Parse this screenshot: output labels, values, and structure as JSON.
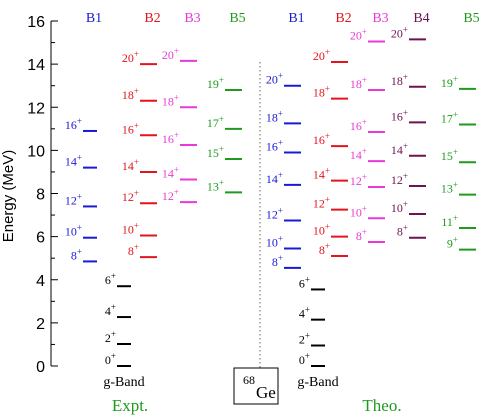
{
  "chart_data": {
    "type": "level-scheme",
    "ylabel": "Energy (MeV)",
    "ylim": [
      0,
      16
    ],
    "yticks": [
      0,
      2,
      4,
      6,
      8,
      10,
      12,
      14,
      16
    ],
    "nucleus": {
      "mass": "68",
      "symbol": "Ge"
    },
    "colors": {
      "B1": "#1a1ad6",
      "B2": "#e3141c",
      "B3": "#e83ad8",
      "B4": "#6b1452",
      "B5": "#1f9a1f",
      "g-Band": "#000000"
    },
    "panels": [
      {
        "name": "Expt.",
        "bands": [
          {
            "name": "g-Band",
            "levels": [
              {
                "spin": "0",
                "parity": "+",
                "energy": 0.0
              },
              {
                "spin": "2",
                "parity": "+",
                "energy": 1.02
              },
              {
                "spin": "4",
                "parity": "+",
                "energy": 2.27
              },
              {
                "spin": "6",
                "parity": "+",
                "energy": 3.7
              }
            ]
          },
          {
            "name": "B1",
            "levels": [
              {
                "spin": "8",
                "parity": "+",
                "energy": 4.85
              },
              {
                "spin": "10",
                "parity": "+",
                "energy": 5.95
              },
              {
                "spin": "12",
                "parity": "+",
                "energy": 7.4
              },
              {
                "spin": "14",
                "parity": "+",
                "energy": 9.2
              },
              {
                "spin": "16",
                "parity": "+",
                "energy": 10.9
              }
            ]
          },
          {
            "name": "B2",
            "levels": [
              {
                "spin": "8",
                "parity": "+",
                "energy": 5.05
              },
              {
                "spin": "10",
                "parity": "+",
                "energy": 6.05
              },
              {
                "spin": "12",
                "parity": "+",
                "energy": 7.55
              },
              {
                "spin": "14",
                "parity": "+",
                "energy": 9.0
              },
              {
                "spin": "16",
                "parity": "+",
                "energy": 10.7
              },
              {
                "spin": "18",
                "parity": "+",
                "energy": 12.3
              },
              {
                "spin": "20",
                "parity": "+",
                "energy": 14.0
              }
            ]
          },
          {
            "name": "B3",
            "levels": [
              {
                "spin": "12",
                "parity": "+",
                "energy": 7.6
              },
              {
                "spin": "14",
                "parity": "+",
                "energy": 8.65
              },
              {
                "spin": "16",
                "parity": "+",
                "energy": 10.25
              },
              {
                "spin": "18",
                "parity": "+",
                "energy": 12.0
              },
              {
                "spin": "20",
                "parity": "+",
                "energy": 14.15
              }
            ]
          },
          {
            "name": "B5",
            "levels": [
              {
                "spin": "13",
                "parity": "+",
                "energy": 8.05
              },
              {
                "spin": "15",
                "parity": "+",
                "energy": 9.6
              },
              {
                "spin": "17",
                "parity": "+",
                "energy": 11.0
              },
              {
                "spin": "19",
                "parity": "+",
                "energy": 12.8
              }
            ]
          }
        ]
      },
      {
        "name": "Theo.",
        "bands": [
          {
            "name": "g-Band",
            "levels": [
              {
                "spin": "0",
                "parity": "+",
                "energy": 0.0
              },
              {
                "spin": "2",
                "parity": "+",
                "energy": 0.95
              },
              {
                "spin": "4",
                "parity": "+",
                "energy": 2.15
              },
              {
                "spin": "6",
                "parity": "+",
                "energy": 3.55
              }
            ]
          },
          {
            "name": "B1",
            "levels": [
              {
                "spin": "8",
                "parity": "+",
                "energy": 4.55
              },
              {
                "spin": "10",
                "parity": "+",
                "energy": 5.45
              },
              {
                "spin": "12",
                "parity": "+",
                "energy": 6.75
              },
              {
                "spin": "14",
                "parity": "+",
                "energy": 8.4
              },
              {
                "spin": "16",
                "parity": "+",
                "energy": 9.9
              },
              {
                "spin": "18",
                "parity": "+",
                "energy": 11.25
              },
              {
                "spin": "20",
                "parity": "+",
                "energy": 13.0
              }
            ]
          },
          {
            "name": "B2",
            "levels": [
              {
                "spin": "8",
                "parity": "+",
                "energy": 5.1
              },
              {
                "spin": "10",
                "parity": "+",
                "energy": 6.0
              },
              {
                "spin": "12",
                "parity": "+",
                "energy": 7.25
              },
              {
                "spin": "14",
                "parity": "+",
                "energy": 8.6
              },
              {
                "spin": "16",
                "parity": "+",
                "energy": 10.2
              },
              {
                "spin": "18",
                "parity": "+",
                "energy": 12.4
              },
              {
                "spin": "20",
                "parity": "+",
                "energy": 14.1
              }
            ]
          },
          {
            "name": "B3",
            "levels": [
              {
                "spin": "8",
                "parity": "+",
                "energy": 5.75
              },
              {
                "spin": "10",
                "parity": "+",
                "energy": 6.85
              },
              {
                "spin": "12",
                "parity": "+",
                "energy": 8.3
              },
              {
                "spin": "14",
                "parity": "+",
                "energy": 9.5
              },
              {
                "spin": "16",
                "parity": "+",
                "energy": 10.85
              },
              {
                "spin": "18",
                "parity": "+",
                "energy": 12.8
              },
              {
                "spin": "20",
                "parity": "+",
                "energy": 15.05
              }
            ]
          },
          {
            "name": "B4",
            "levels": [
              {
                "spin": "8",
                "parity": "+",
                "energy": 5.95
              },
              {
                "spin": "10",
                "parity": "+",
                "energy": 7.05
              },
              {
                "spin": "12",
                "parity": "+",
                "energy": 8.35
              },
              {
                "spin": "14",
                "parity": "+",
                "energy": 9.75
              },
              {
                "spin": "16",
                "parity": "+",
                "energy": 11.3
              },
              {
                "spin": "18",
                "parity": "+",
                "energy": 12.95
              },
              {
                "spin": "20",
                "parity": "+",
                "energy": 15.15
              }
            ]
          },
          {
            "name": "B5",
            "levels": [
              {
                "spin": "9",
                "parity": "+",
                "energy": 5.4
              },
              {
                "spin": "11",
                "parity": "+",
                "energy": 6.4
              },
              {
                "spin": "13",
                "parity": "+",
                "energy": 7.95
              },
              {
                "spin": "15",
                "parity": "+",
                "energy": 9.45
              },
              {
                "spin": "17",
                "parity": "+",
                "energy": 11.2
              },
              {
                "spin": "19",
                "parity": "+",
                "energy": 12.85
              }
            ]
          }
        ]
      }
    ]
  }
}
